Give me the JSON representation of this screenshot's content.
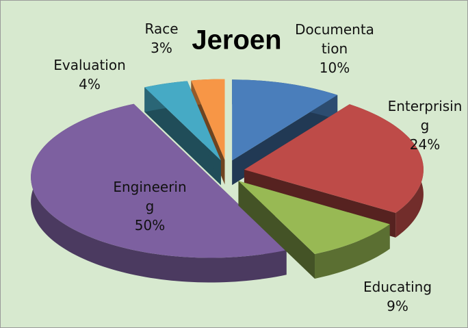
{
  "chart_data": {
    "type": "pie",
    "title": "Jeroen",
    "categories": [
      "Documentation",
      "Enterprising",
      "Educating",
      "Engineering",
      "Evaluation",
      "Race"
    ],
    "values": [
      10,
      24,
      9,
      50,
      4,
      3
    ],
    "value_labels": [
      "10%",
      "24%",
      "9%",
      "50%",
      "4%",
      "3%"
    ],
    "colors": [
      "#4a7ebb",
      "#be4b48",
      "#98b954",
      "#7d60a0",
      "#46aac5",
      "#f79646"
    ],
    "three_d": true,
    "exploded": true
  }
}
